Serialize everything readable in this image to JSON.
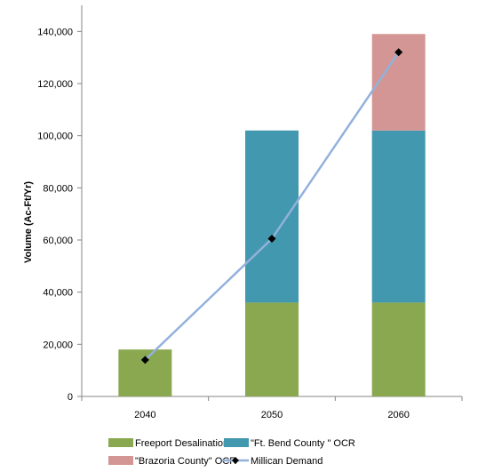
{
  "chart_data": {
    "type": "bar",
    "stacked": true,
    "categories": [
      "2040",
      "2050",
      "2060"
    ],
    "ylabel": "Volume (Ac-Ft/Yr)",
    "xlabel": "",
    "ylim": [
      0,
      150000
    ],
    "yticks": [
      0,
      20000,
      40000,
      60000,
      80000,
      100000,
      120000,
      140000
    ],
    "ytick_labels": [
      "0",
      "20,000",
      "40,000",
      "60,000",
      "80,000",
      "100,000",
      "120,000",
      "140,000"
    ],
    "grid": false,
    "legend_position": "bottom",
    "series": [
      {
        "name": "Freeport Desalination",
        "kind": "bar",
        "color": "#8aa84f",
        "values": [
          18000,
          36000,
          36000
        ]
      },
      {
        "name": "\"Ft. Bend County \" OCR",
        "kind": "bar",
        "color": "#4298ae",
        "values": [
          0,
          66000,
          66000
        ]
      },
      {
        "name": "\"Brazoria County\" OCR",
        "kind": "bar",
        "color": "#d49694",
        "values": [
          0,
          0,
          37000
        ]
      },
      {
        "name": "Millican Demand",
        "kind": "line",
        "color": "#92b1dc",
        "marker_color": "#000000",
        "values": [
          14000,
          60500,
          132000
        ]
      }
    ]
  }
}
